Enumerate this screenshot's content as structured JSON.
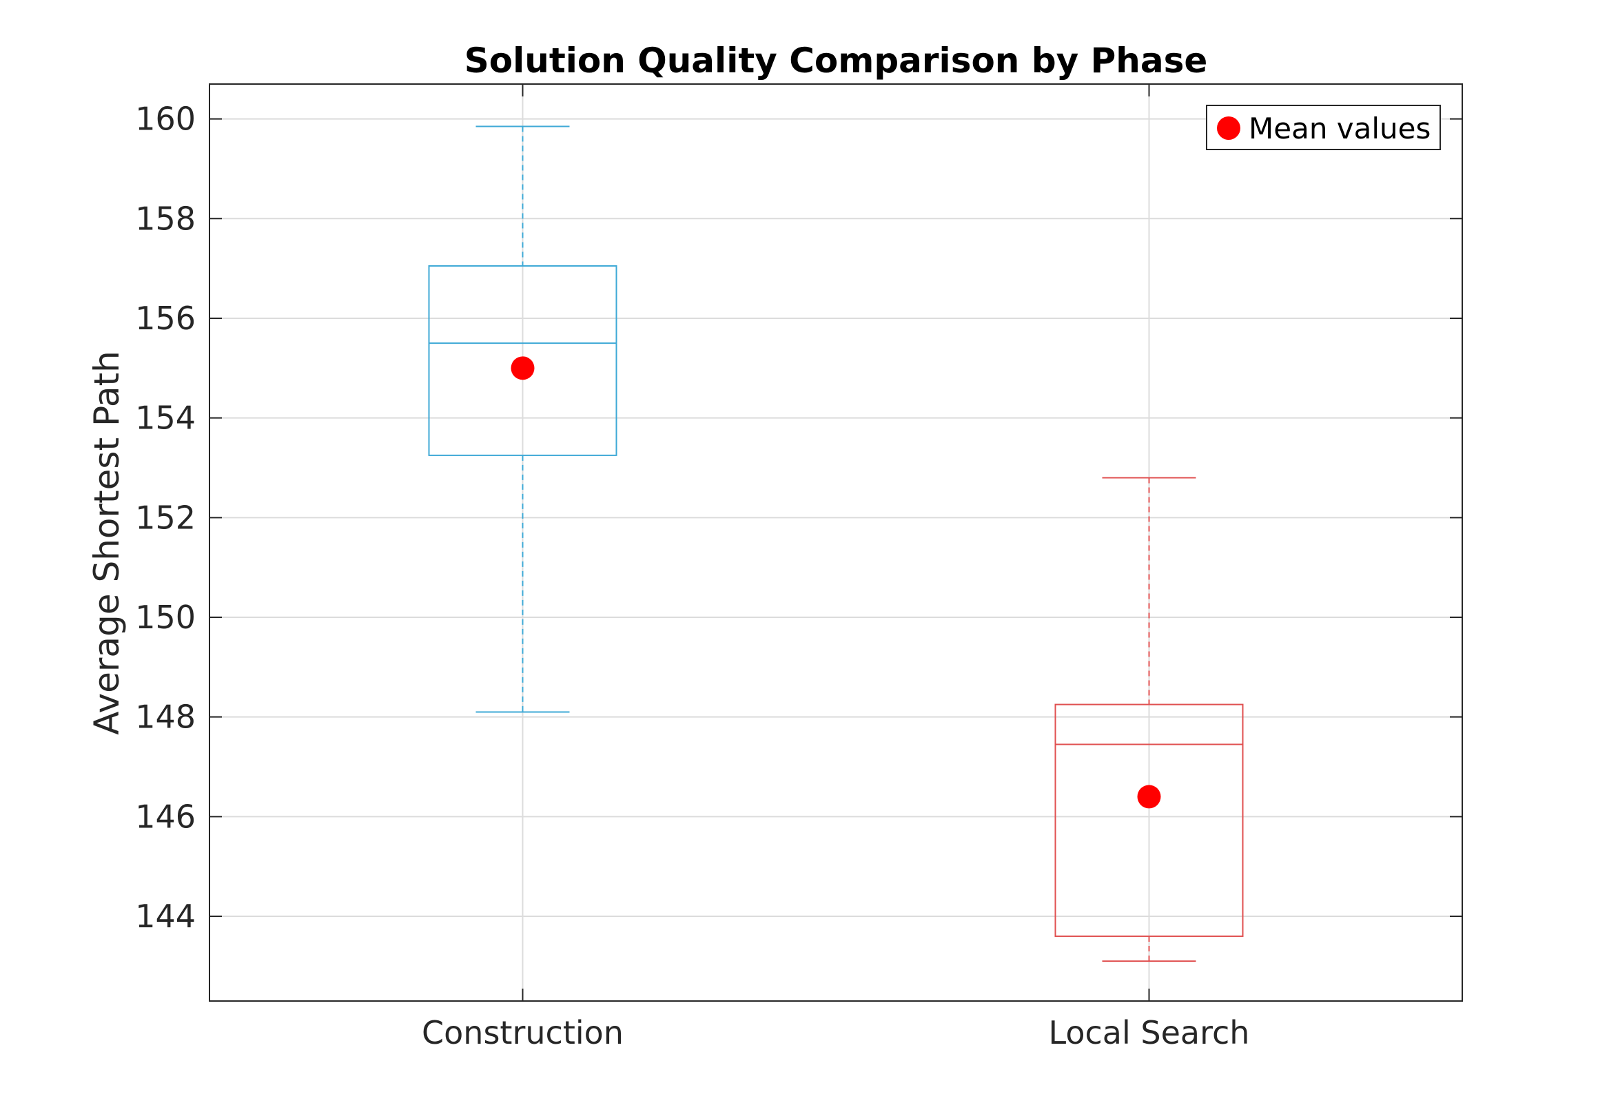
{
  "chart_data": {
    "type": "box",
    "title": "Solution Quality Comparison by Phase",
    "xlabel": "",
    "ylabel": "Average Shortest Path",
    "categories": [
      "Construction",
      "Local Search"
    ],
    "ylim": [
      142.3,
      160.7
    ],
    "yticks": [
      144,
      146,
      148,
      150,
      152,
      154,
      156,
      158,
      160
    ],
    "ytick_labels": [
      "144",
      "146",
      "148",
      "150",
      "152",
      "154",
      "156",
      "158",
      "160"
    ],
    "grid": true,
    "legend": {
      "position": "top-right",
      "entries": [
        "Mean values"
      ]
    },
    "series": [
      {
        "category": "Construction",
        "whisker_low": 148.1,
        "q1": 153.25,
        "median": 155.5,
        "q3": 157.05,
        "whisker_high": 159.85,
        "mean": 155.0,
        "color": "#3ea9d6"
      },
      {
        "category": "Local Search",
        "whisker_low": 143.1,
        "q1": 143.6,
        "median": 147.45,
        "q3": 148.25,
        "whisker_high": 152.8,
        "mean": 146.4,
        "color": "#e05050"
      }
    ],
    "mean_marker_color": "#ff0000"
  }
}
